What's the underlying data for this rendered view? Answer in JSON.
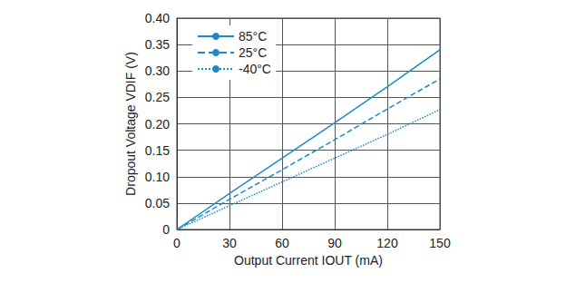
{
  "chart_data": {
    "type": "line",
    "x_label": "Output Current IOUT (mA)",
    "y_label": "Dropout Voltage VDIF (V)",
    "x": [
      0,
      30,
      60,
      90,
      120,
      150
    ],
    "series": [
      {
        "name": "85°C",
        "color": "#1a8bc8",
        "line_style": "solid",
        "values": [
          0,
          0.068,
          0.135,
          0.202,
          0.27,
          0.34
        ]
      },
      {
        "name": "25°C",
        "color": "#1a8bc8",
        "line_style": "dashed",
        "values": [
          0,
          0.057,
          0.113,
          0.17,
          0.228,
          0.285
        ]
      },
      {
        "name": "-40°C",
        "color": "#1a8bc8",
        "line_style": "dotted",
        "values": [
          0,
          0.045,
          0.09,
          0.135,
          0.18,
          0.227
        ]
      }
    ],
    "xlim": [
      0,
      150
    ],
    "xticks": [
      0,
      30,
      60,
      90,
      120,
      150
    ],
    "ylim": [
      0,
      0.4
    ],
    "yticks": [
      0,
      0.05,
      {
        "value": 0.1,
        "label": "0.10"
      },
      0.15,
      {
        "value": 0.2,
        "label": "0.20"
      },
      0.25,
      {
        "value": 0.3,
        "label": "0.30"
      },
      0.35,
      {
        "value": 0.4,
        "label": "0.40"
      }
    ],
    "grid": true,
    "legend": "upper left"
  }
}
